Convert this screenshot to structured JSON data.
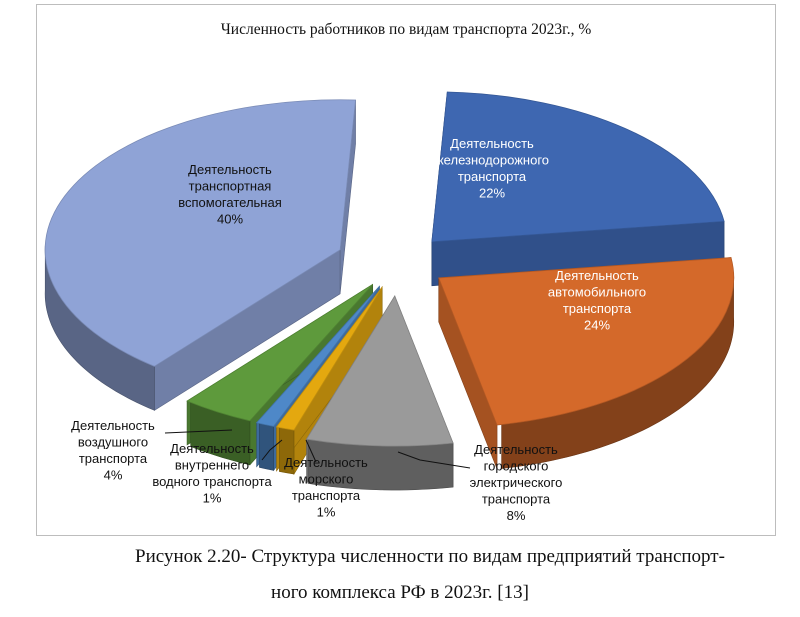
{
  "chart_data": {
    "type": "pie",
    "title": "Численность работников по видам транспорта 2023г., %",
    "slices": [
      {
        "label": [
          "Деятельность",
          "железнодорожного",
          "транспорта"
        ],
        "pct_label": "22%",
        "value": 22,
        "color": "#3E67B1"
      },
      {
        "label": [
          "Деятельность",
          "автомобильного",
          "транспорта"
        ],
        "pct_label": "24%",
        "value": 24,
        "color": "#D4692A"
      },
      {
        "label": [
          "Деятельность",
          "городского",
          "электрического",
          "транспорта"
        ],
        "pct_label": "8%",
        "value": 8,
        "color": "#9A9A9A"
      },
      {
        "label": [
          "Деятельность",
          "морского",
          "транспорта"
        ],
        "pct_label": "1%",
        "value": 1,
        "color": "#E4A80F"
      },
      {
        "label": [
          "Деятельность",
          "внутреннего",
          "водного транспорта"
        ],
        "pct_label": "1%",
        "value": 1,
        "color": "#4E88C8"
      },
      {
        "label": [
          "Деятельность",
          "воздушного",
          "транспорта"
        ],
        "pct_label": "4%",
        "value": 4,
        "color": "#5E9A3C"
      },
      {
        "label": [
          "Деятельность",
          "транспортная",
          "вспомогательная"
        ],
        "pct_label": "40%",
        "value": 40,
        "color": "#8FA3D6"
      }
    ]
  },
  "caption": {
    "line1": "Рисунок 2.20- Структура численности по видам предприятий транспорт-",
    "line2": "ного комплекса РФ в 2023г. [13]"
  }
}
